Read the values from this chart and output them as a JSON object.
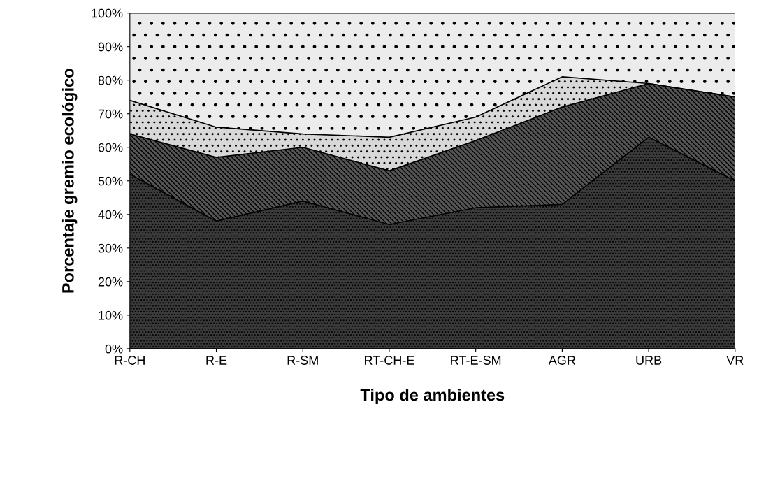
{
  "chart_data": {
    "type": "area",
    "stacked": true,
    "xlabel": "Tipo de ambientes",
    "ylabel": "Porcentaje gremio ecológico",
    "categories": [
      "R-CH",
      "R-E",
      "R-SM",
      "RT-CH-E",
      "RT-E-SM",
      "AGR",
      "URB",
      "VR"
    ],
    "series": [
      {
        "color": "#3a3a3a",
        "values": [
          52,
          38,
          44,
          37,
          42,
          43,
          63,
          50
        ]
      },
      {
        "color": "#555555",
        "values": [
          12,
          19,
          16,
          16,
          20,
          29,
          16,
          25
        ]
      },
      {
        "color": "#d8d8d8",
        "values": [
          10,
          9,
          4,
          10,
          7,
          9,
          0,
          0
        ]
      },
      {
        "color": "#ececec",
        "values": [
          26,
          34,
          36,
          37,
          31,
          19,
          21,
          25
        ]
      }
    ],
    "ylim": [
      0,
      100
    ],
    "yticks": [
      {
        "value": 0,
        "label": "0%"
      },
      {
        "value": 10,
        "label": "10%"
      },
      {
        "value": 20,
        "label": "20%"
      },
      {
        "value": 30,
        "label": "30%"
      },
      {
        "value": 40,
        "label": "40%"
      },
      {
        "value": 50,
        "label": "50%"
      },
      {
        "value": 60,
        "label": "60%"
      },
      {
        "value": 70,
        "label": "70%"
      },
      {
        "value": 80,
        "label": "80%"
      },
      {
        "value": 90,
        "label": "90%"
      },
      {
        "value": 100,
        "label": "100%"
      }
    ],
    "grid": false,
    "legend": false
  }
}
